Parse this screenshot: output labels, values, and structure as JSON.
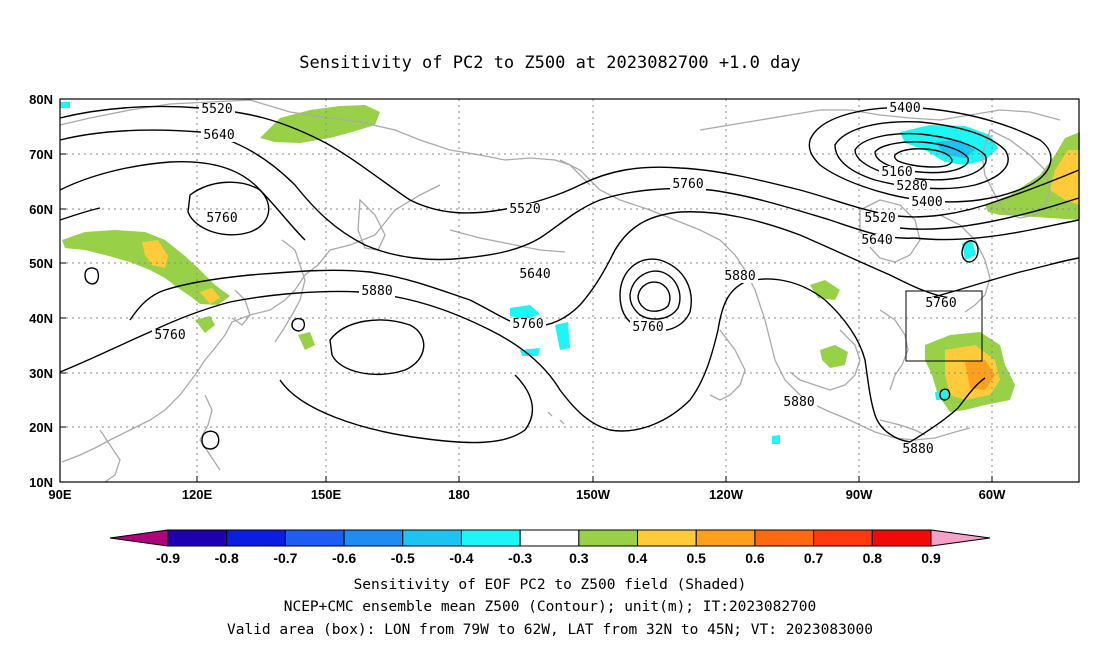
{
  "title": "Sensitivity of PC2 to Z500 at 2023082700 +1.0 day",
  "map": {
    "lon_labels": [
      "90E",
      "120E",
      "150E",
      "180",
      "150W",
      "120W",
      "90W",
      "60W"
    ],
    "lat_labels": [
      "80N",
      "70N",
      "60N",
      "50N",
      "40N",
      "30N",
      "20N",
      "10N"
    ],
    "contour_labels": [
      "5520",
      "5640",
      "5760",
      "5520",
      "5760",
      "5640",
      "5760",
      "5760",
      "5880",
      "5880",
      "5760",
      "5880",
      "5400",
      "5160",
      "5280",
      "5400",
      "5520",
      "5640",
      "5760",
      "5880"
    ],
    "valid_box": {
      "lon_west": "79W",
      "lon_east": "62W",
      "lat_south": "32N",
      "lat_north": "45N"
    },
    "colors": {
      "coast": "#aaaaaa",
      "grid": "#888888",
      "contour": "#000000"
    }
  },
  "colorbar": {
    "labels": [
      "-0.9",
      "-0.8",
      "-0.7",
      "-0.6",
      "-0.5",
      "-0.4",
      "-0.3",
      "0.3",
      "0.4",
      "0.5",
      "0.6",
      "0.7",
      "0.8",
      "0.9"
    ],
    "colors": [
      "#1f00b0",
      "#0a1ee0",
      "#1f5cf0",
      "#1e8cf0",
      "#1ec3f0",
      "#1ef5f5",
      "#ffffff",
      "#98d048",
      "#ffcb3a",
      "#ff9f1f",
      "#ff6a10",
      "#ff3a10",
      "#f00a0a"
    ],
    "low_tip": "#b0007a",
    "high_tip": "#f7a0c8"
  },
  "footer": [
    "Sensitivity of EOF PC2 to Z500 field (Shaded)",
    "NCEP+CMC ensemble mean Z500 (Contour); unit(m); IT:2023082700",
    "Valid area (box): LON from 79W to 62W, LAT from 32N to 45N; VT: 2023083000"
  ]
}
